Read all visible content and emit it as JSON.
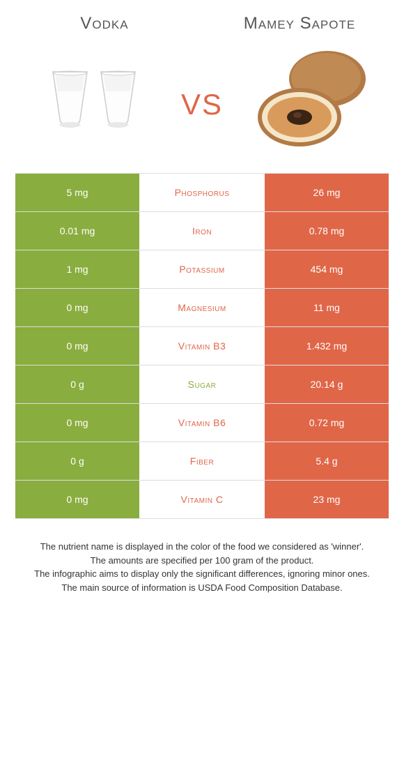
{
  "colors": {
    "left_bg": "#8aad3f",
    "right_bg": "#e06648",
    "mid_left": "#8aad3f",
    "mid_right": "#e06648",
    "vs": "#e06648"
  },
  "header": {
    "left": "Vodka",
    "right": "Mamey Sapote",
    "vs": "vs"
  },
  "rows": [
    {
      "left": "5 mg",
      "mid": "Phosphorus",
      "right": "26 mg",
      "winner": "right"
    },
    {
      "left": "0.01 mg",
      "mid": "Iron",
      "right": "0.78 mg",
      "winner": "right"
    },
    {
      "left": "1 mg",
      "mid": "Potassium",
      "right": "454 mg",
      "winner": "right"
    },
    {
      "left": "0 mg",
      "mid": "Magnesium",
      "right": "11 mg",
      "winner": "right"
    },
    {
      "left": "0 mg",
      "mid": "Vitamin B3",
      "right": "1.432 mg",
      "winner": "right"
    },
    {
      "left": "0 g",
      "mid": "Sugar",
      "right": "20.14 g",
      "winner": "left"
    },
    {
      "left": "0 mg",
      "mid": "Vitamin B6",
      "right": "0.72 mg",
      "winner": "right"
    },
    {
      "left": "0 g",
      "mid": "Fiber",
      "right": "5.4 g",
      "winner": "right"
    },
    {
      "left": "0 mg",
      "mid": "Vitamin C",
      "right": "23 mg",
      "winner": "right"
    }
  ],
  "footer": {
    "line1": "The nutrient name is displayed in the color of the food we considered as 'winner'.",
    "line2": "The amounts are specified per 100 gram of the product.",
    "line3": "The infographic aims to display only the significant differences, ignoring minor ones.",
    "line4": "The main source of information is USDA Food Composition Database."
  }
}
